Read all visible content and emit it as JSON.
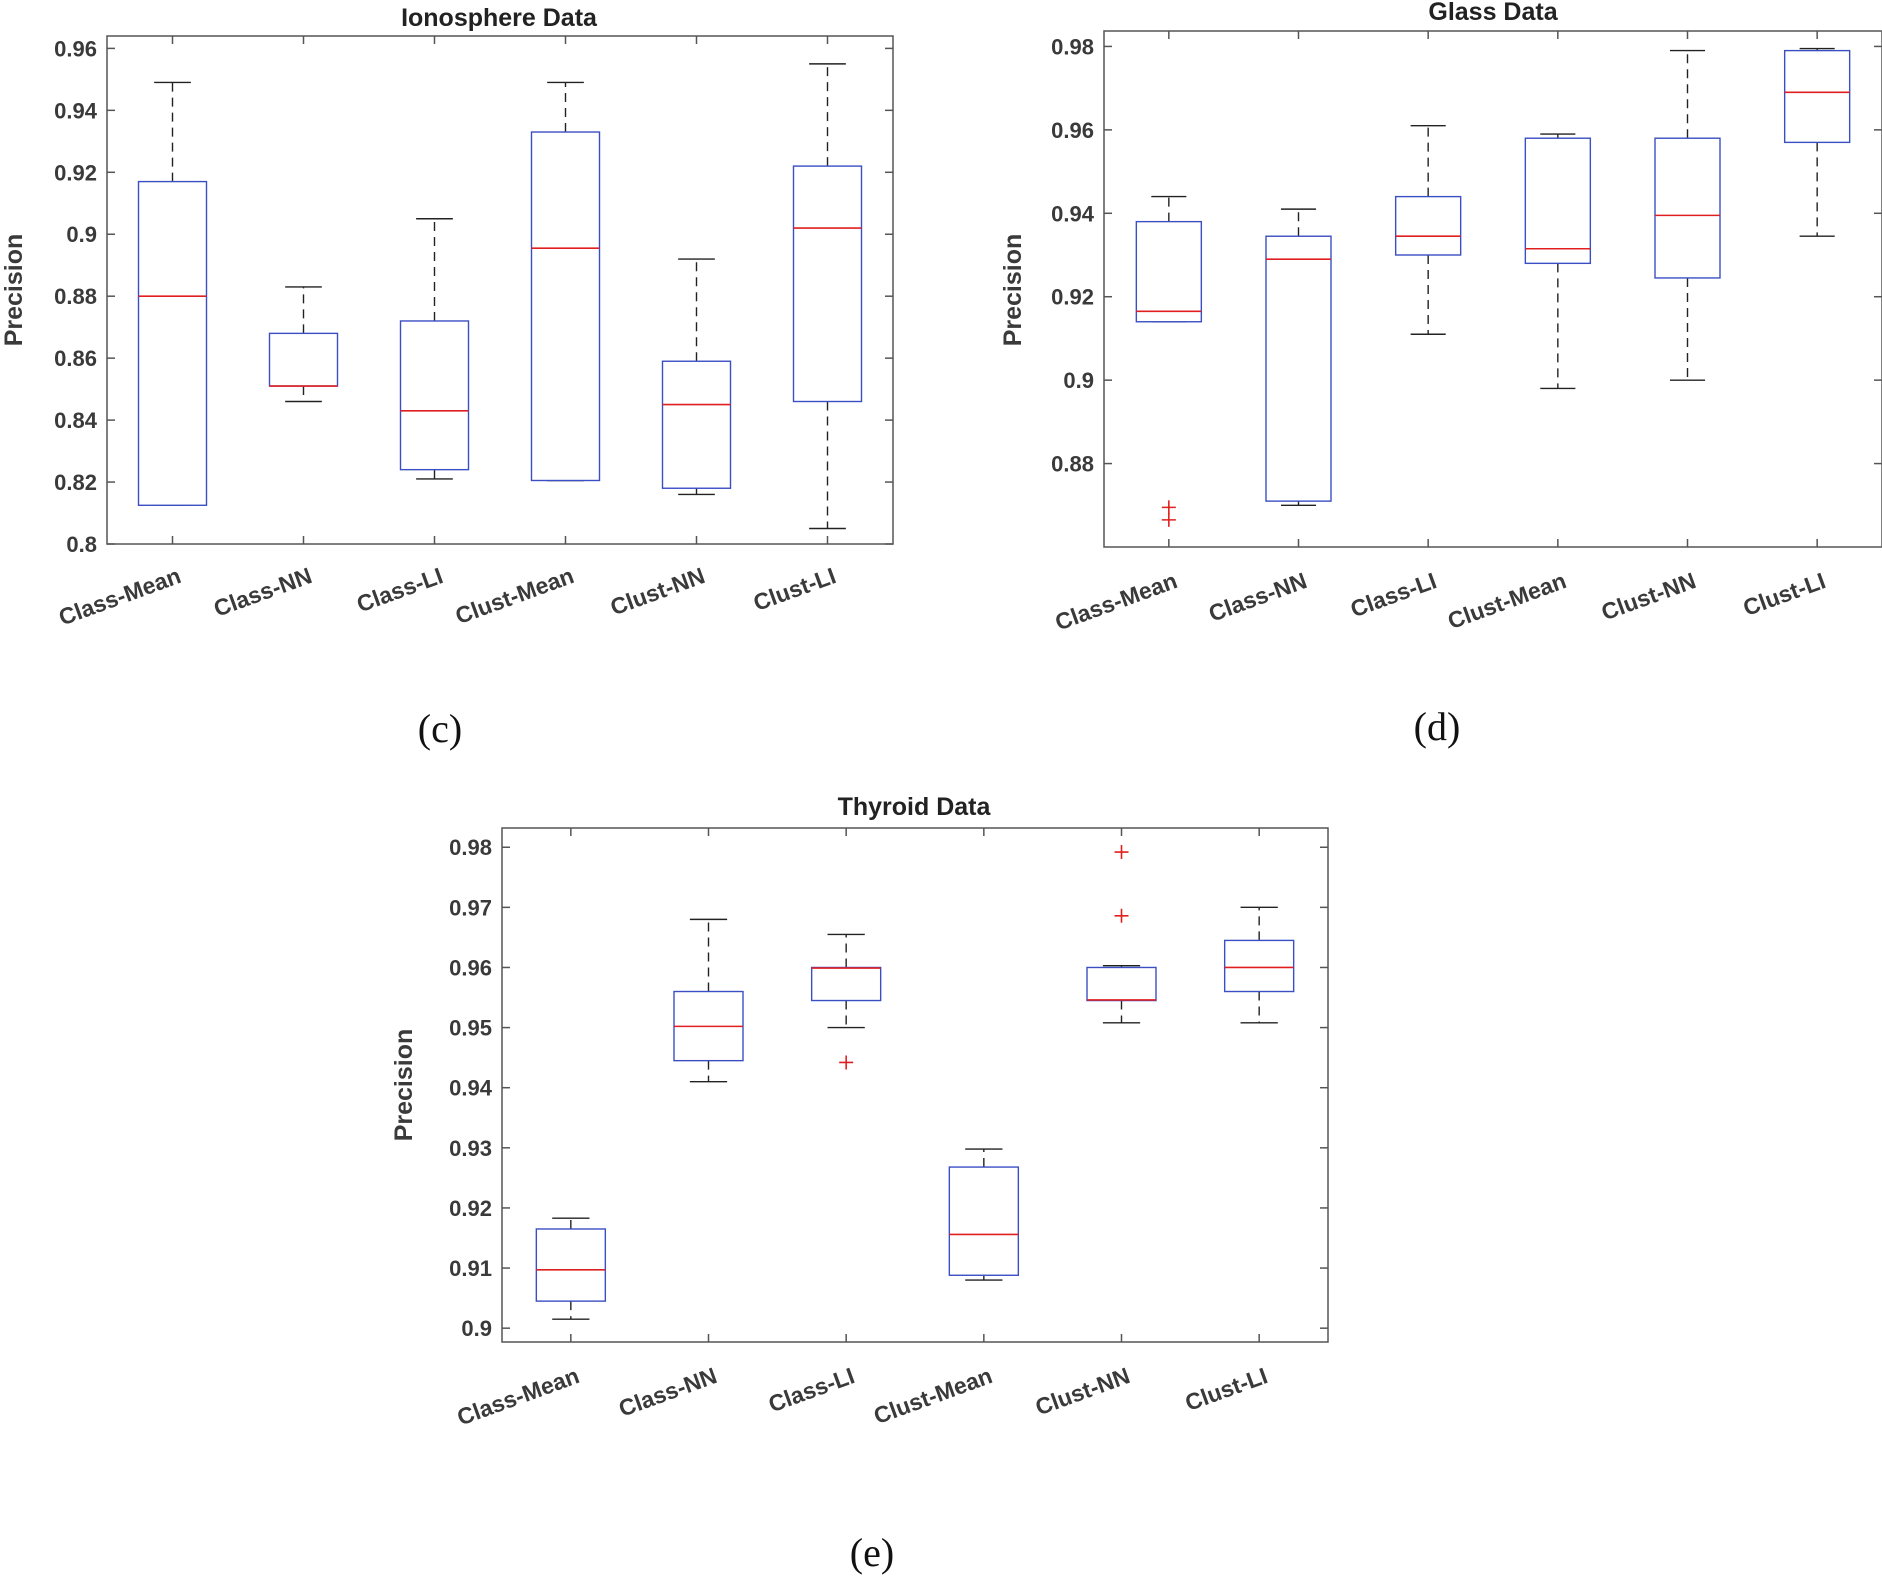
{
  "colors": {
    "box": "#3b4fc4",
    "median": "#e02020",
    "whisker": "#222222",
    "outlier": "#e02020",
    "axis": "#555555",
    "text": "#3a3a3a"
  },
  "chart_data": [
    {
      "id": "ionosphere",
      "type": "boxplot",
      "title": "Ionosphere Data",
      "caption": "(c)",
      "ylabel": "Precision",
      "xlabel": "",
      "ylim": [
        0.8,
        0.964
      ],
      "yticks": [
        0.8,
        0.82,
        0.84,
        0.86,
        0.88,
        0.9,
        0.92,
        0.94,
        0.96
      ],
      "ytick_labels": [
        "0.8",
        "0.82",
        "0.84",
        "0.86",
        "0.88",
        "0.9",
        "0.92",
        "0.94",
        "0.96"
      ],
      "categories": [
        "Class-Mean",
        "Class-NN",
        "Class-LI",
        "Clust-Mean",
        "Clust-NN",
        "Clust-LI"
      ],
      "boxes": [
        {
          "min": 0.8125,
          "q1": 0.8125,
          "median": 0.88,
          "q3": 0.917,
          "max": 0.949,
          "outliers": []
        },
        {
          "min": 0.846,
          "q1": 0.851,
          "median": 0.851,
          "q3": 0.868,
          "max": 0.883,
          "outliers": []
        },
        {
          "min": 0.821,
          "q1": 0.824,
          "median": 0.843,
          "q3": 0.872,
          "max": 0.905,
          "outliers": []
        },
        {
          "min": 0.8205,
          "q1": 0.8205,
          "median": 0.8955,
          "q3": 0.933,
          "max": 0.949,
          "outliers": []
        },
        {
          "min": 0.816,
          "q1": 0.818,
          "median": 0.845,
          "q3": 0.859,
          "max": 0.892,
          "outliers": []
        },
        {
          "min": 0.805,
          "q1": 0.846,
          "median": 0.902,
          "q3": 0.922,
          "max": 0.955,
          "outliers": []
        }
      ]
    },
    {
      "id": "glass",
      "type": "boxplot",
      "title": "Glass Data",
      "caption": "(d)",
      "ylabel": "Precision",
      "xlabel": "",
      "ylim": [
        0.86,
        0.9837
      ],
      "yticks": [
        0.88,
        0.9,
        0.92,
        0.94,
        0.96,
        0.98
      ],
      "ytick_labels": [
        "0.88",
        "0.9",
        "0.92",
        "0.94",
        "0.96",
        "0.98"
      ],
      "categories": [
        "Class-Mean",
        "Class-NN",
        "Class-LI",
        "Clust-Mean",
        "Clust-NN",
        "Clust-LI"
      ],
      "boxes": [
        {
          "min": 0.914,
          "q1": 0.914,
          "median": 0.9165,
          "q3": 0.938,
          "max": 0.944,
          "outliers": [
            0.8695,
            0.8665
          ]
        },
        {
          "min": 0.87,
          "q1": 0.871,
          "median": 0.929,
          "q3": 0.9345,
          "max": 0.941,
          "outliers": []
        },
        {
          "min": 0.911,
          "q1": 0.93,
          "median": 0.9345,
          "q3": 0.944,
          "max": 0.961,
          "outliers": []
        },
        {
          "min": 0.898,
          "q1": 0.928,
          "median": 0.9315,
          "q3": 0.958,
          "max": 0.959,
          "outliers": []
        },
        {
          "min": 0.9,
          "q1": 0.9245,
          "median": 0.9395,
          "q3": 0.958,
          "max": 0.979,
          "outliers": []
        },
        {
          "min": 0.9345,
          "q1": 0.957,
          "median": 0.969,
          "q3": 0.979,
          "max": 0.9795,
          "outliers": []
        }
      ]
    },
    {
      "id": "thyroid",
      "type": "boxplot",
      "title": "Thyroid Data",
      "caption": "(e)",
      "ylabel": "Precision",
      "xlabel": "",
      "ylim": [
        0.8977,
        0.9832
      ],
      "yticks": [
        0.9,
        0.91,
        0.92,
        0.93,
        0.94,
        0.95,
        0.96,
        0.97,
        0.98
      ],
      "ytick_labels": [
        "0.9",
        "0.91",
        "0.92",
        "0.93",
        "0.94",
        "0.95",
        "0.96",
        "0.97",
        "0.98"
      ],
      "categories": [
        "Class-Mean",
        "Class-NN",
        "Class-LI",
        "Clust-Mean",
        "Clust-NN",
        "Clust-LI"
      ],
      "boxes": [
        {
          "min": 0.9015,
          "q1": 0.9045,
          "median": 0.9097,
          "q3": 0.9165,
          "max": 0.9183,
          "outliers": []
        },
        {
          "min": 0.941,
          "q1": 0.9445,
          "median": 0.9502,
          "q3": 0.956,
          "max": 0.968,
          "outliers": []
        },
        {
          "min": 0.95,
          "q1": 0.9545,
          "median": 0.9599,
          "q3": 0.96,
          "max": 0.9655,
          "outliers": [
            0.9442
          ]
        },
        {
          "min": 0.908,
          "q1": 0.9088,
          "median": 0.9156,
          "q3": 0.9268,
          "max": 0.9298,
          "outliers": []
        },
        {
          "min": 0.9508,
          "q1": 0.9545,
          "median": 0.9546,
          "q3": 0.96,
          "max": 0.9603,
          "outliers": [
            0.9792,
            0.9686
          ]
        },
        {
          "min": 0.9508,
          "q1": 0.956,
          "median": 0.96,
          "q3": 0.9645,
          "max": 0.97,
          "outliers": []
        }
      ]
    }
  ]
}
